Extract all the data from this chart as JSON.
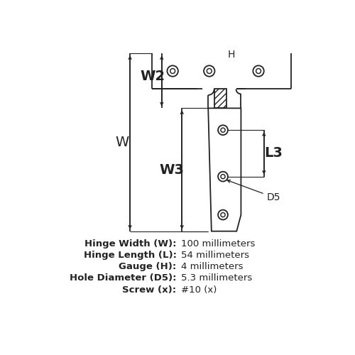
{
  "bg_color": "#ffffff",
  "line_color": "#222222",
  "text_color": "#222222",
  "spec_labels": [
    "Hinge Width (W):",
    "Hinge Length (L):",
    "Gauge (H):",
    "Hole Diameter (D5):",
    "Screw (x):"
  ],
  "spec_values": [
    "100 millimeters",
    "54 millimeters",
    "4 millimeters",
    "5.3 millimeters",
    "#10 (x)"
  ],
  "label_fontsize": 9.5,
  "dim_label_fontsize": 14,
  "dim_label_fontsize_sm": 10
}
